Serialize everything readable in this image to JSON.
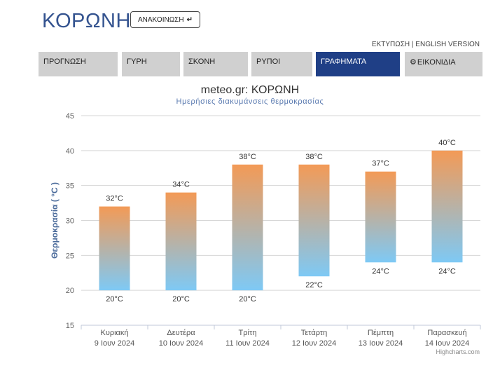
{
  "header": {
    "site_title": "ΚΟΡΩΝΗ",
    "announce_label": "ΑΝΑΚΟΙΝΩΣΗ",
    "announce_icon": "sort-down-arrow-icon",
    "print_link": "ΕΚΤΥΠΩΣΗ",
    "separator": " | ",
    "english_link": "ENGLISH VERSION"
  },
  "nav": {
    "tabs": [
      {
        "label": "ΠΡΟΓΝΩΣΗ",
        "active": false
      },
      {
        "label": "ΓΥΡΗ",
        "active": false
      },
      {
        "label": "ΣΚΟΝΗ",
        "active": false
      },
      {
        "label": "ΡΥΠΟΙ",
        "active": false
      },
      {
        "label": "ΓΡΑΦΗΜΑΤΑ",
        "active": true
      },
      {
        "label": "ΕΙΚΟΝΙΔΙΑ",
        "active": false,
        "icon": "gear-icon"
      }
    ]
  },
  "chart_data": {
    "type": "columnrange",
    "title": "meteo.gr: ΚΟΡΩΝΗ",
    "subtitle": "Ημερήσιες διακυμάνσεις θερμοκρασίας",
    "ylabel": "Θερμοκρασία ( °C )",
    "ylim": [
      15,
      45
    ],
    "yticks": [
      15,
      20,
      25,
      30,
      35,
      40,
      45
    ],
    "unit": "°C",
    "grid": true,
    "categories": [
      {
        "day": "Κυριακή",
        "date": "9 Ιουν 2024"
      },
      {
        "day": "Δευτέρα",
        "date": "10 Ιουν 2024"
      },
      {
        "day": "Τρίτη",
        "date": "11 Ιουν 2024"
      },
      {
        "day": "Τετάρτη",
        "date": "12 Ιουν 2024"
      },
      {
        "day": "Πέμπτη",
        "date": "13 Ιουν 2024"
      },
      {
        "day": "Παρασκευή",
        "date": "14 Ιουν 2024"
      }
    ],
    "low": [
      20,
      20,
      20,
      22,
      24,
      24
    ],
    "high": [
      32,
      34,
      38,
      38,
      37,
      40
    ],
    "colors": {
      "warm": "#f39a56",
      "cool": "#7ec9f5",
      "axis_label": "#4a6a9a",
      "grid": "#d6d6d6"
    }
  },
  "credits": "Highcharts.com"
}
